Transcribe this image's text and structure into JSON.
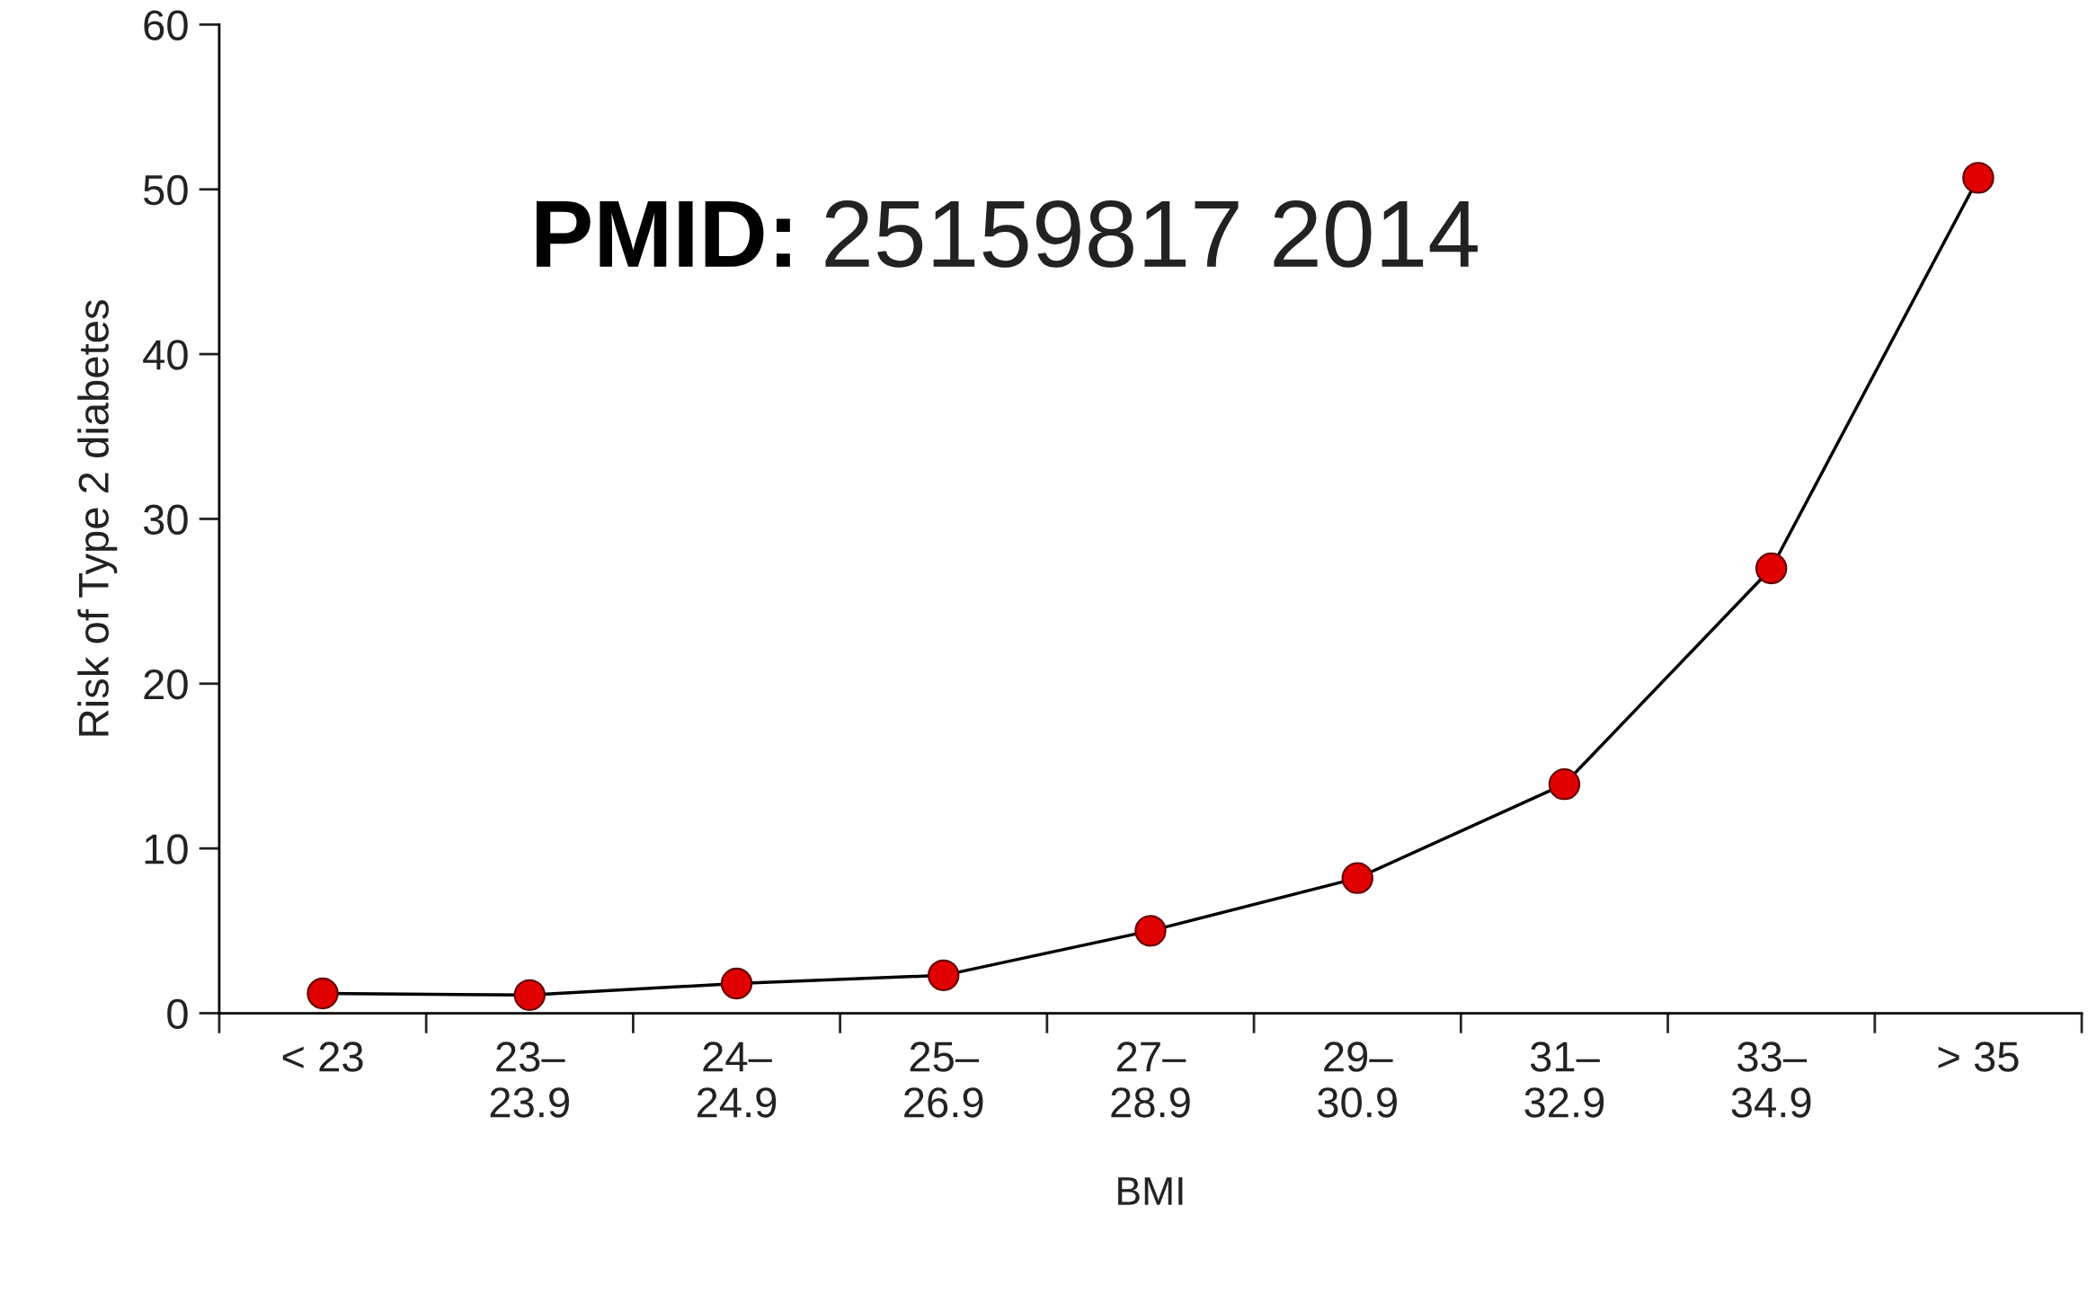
{
  "chart_data": {
    "type": "line",
    "xlabel": "BMI",
    "ylabel": "Risk of Type 2 diabetes",
    "categories": [
      "< 23",
      "23–\n23.9",
      "24–\n24.9",
      "25–\n26.9",
      "27–\n28.9",
      "29–\n30.9",
      "31–\n32.9",
      "33–\n34.9",
      "> 35"
    ],
    "series": [
      {
        "color": "#e00000",
        "values": [
          1.2,
          1.1,
          1.8,
          2.3,
          5.0,
          8.2,
          13.9,
          27.0,
          50.7
        ]
      }
    ],
    "ylim": [
      0,
      60
    ],
    "yticks": [
      0,
      10,
      20,
      30,
      40,
      50,
      60
    ],
    "marker": "circle",
    "line_style": "solid",
    "grid": false,
    "legend": false,
    "annotations": [
      "PMID:",
      "25159817 2014"
    ]
  }
}
